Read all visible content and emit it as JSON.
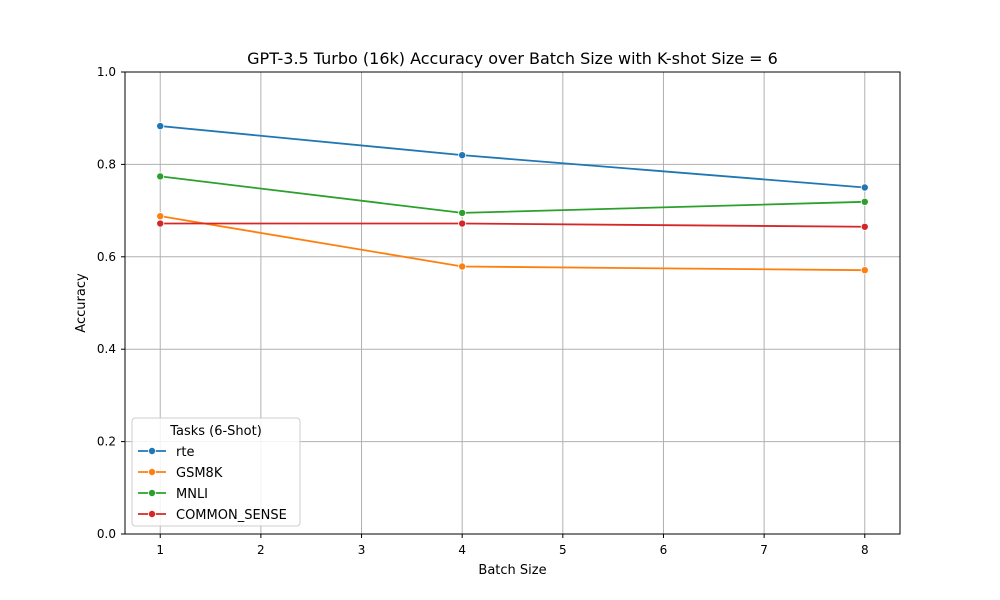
{
  "chart_data": {
    "type": "line",
    "title": "GPT-3.5 Turbo (16k) Accuracy over Batch Size with K-shot Size = 6",
    "xlabel": "Batch Size",
    "ylabel": "Accuracy",
    "xlim": [
      0.65,
      8.35
    ],
    "ylim": [
      0.0,
      1.0
    ],
    "xticks": [
      1,
      2,
      3,
      4,
      5,
      6,
      7,
      8
    ],
    "yticks": [
      0.0,
      0.2,
      0.4,
      0.6,
      0.8,
      1.0
    ],
    "xtick_labels": [
      "1",
      "2",
      "3",
      "4",
      "5",
      "6",
      "7",
      "8"
    ],
    "ytick_labels": [
      "0.0",
      "0.2",
      "0.4",
      "0.6",
      "0.8",
      "1.0"
    ],
    "grid": true,
    "legend": {
      "title": "Tasks (6-Shot)",
      "placement": "lower-left"
    },
    "x": [
      1,
      4,
      8
    ],
    "series": [
      {
        "name": "rte",
        "color": "#1f77b4",
        "values": [
          0.883,
          0.82,
          0.75
        ]
      },
      {
        "name": "GSM8K",
        "color": "#ff7f0e",
        "values": [
          0.688,
          0.579,
          0.571
        ]
      },
      {
        "name": "MNLI",
        "color": "#2ca02c",
        "values": [
          0.774,
          0.695,
          0.719
        ]
      },
      {
        "name": "COMMON_SENSE",
        "color": "#d62728",
        "values": [
          0.672,
          0.672,
          0.665
        ]
      }
    ]
  }
}
